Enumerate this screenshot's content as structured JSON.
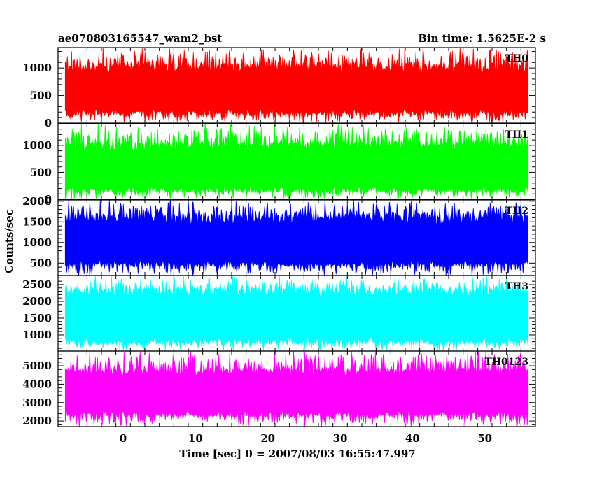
{
  "chart_data": {
    "type": "line",
    "title": "ae070803165547_wam2_bst",
    "subtitle": "Bin time: 1.5625E-2 s",
    "xlabel": "Time [sec] 0 = 2007/08/03 16:55:47.997",
    "ylabel": "Counts/sec",
    "xlim": [
      -9,
      57
    ],
    "xticks": [
      0,
      10,
      20,
      30,
      40,
      50
    ],
    "x_start": -8.0,
    "x_end": 56.0,
    "bin_time": 0.015625,
    "panels": [
      {
        "name": "TH0",
        "color": "#ff0000",
        "ylim": [
          0,
          1370
        ],
        "yticks": [
          0,
          500,
          1000
        ],
        "low": 150,
        "mid": 560,
        "high": 1080,
        "peak_max": 1370,
        "trough_min": 0
      },
      {
        "name": "TH1",
        "color": "#00ff00",
        "ylim": [
          0,
          1400
        ],
        "yticks": [
          0,
          500,
          1000
        ],
        "low": 130,
        "mid": 560,
        "high": 1070,
        "peak_max": 1400,
        "trough_min": 0
      },
      {
        "name": "TH2",
        "color": "#0000ff",
        "ylim": [
          200,
          2030
        ],
        "yticks": [
          500,
          1000,
          1500,
          2000
        ],
        "low": 420,
        "mid": 1000,
        "high": 1680,
        "peak_max": 2030,
        "trough_min": 200
      },
      {
        "name": "TH3",
        "color": "#00ffff",
        "ylim": [
          520,
          2770
        ],
        "yticks": [
          1000,
          1500,
          2000,
          2500
        ],
        "low": 720,
        "mid": 1550,
        "high": 2420,
        "peak_max": 2770,
        "trough_min": 520
      },
      {
        "name": "TH0123",
        "color": "#ff00ff",
        "ylim": [
          1700,
          5800
        ],
        "yticks": [
          2000,
          3000,
          4000,
          5000
        ],
        "low": 2250,
        "mid": 3500,
        "high": 4900,
        "peak_max": 5800,
        "trough_min": 1700
      }
    ]
  }
}
